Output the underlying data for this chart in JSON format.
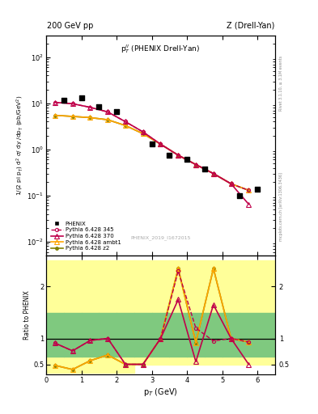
{
  "title_left": "200 GeV pp",
  "title_right": "Z (Drell-Yan)",
  "panel_title": "p$_T^{ll}$ (PHENIX Drell-Yan)",
  "ylabel_main": "1/(2 pi p$_T$) d$^2$ $\\sigma$/ dy /dp$_T$ (pb/GeV$^2$)",
  "ylabel_ratio": "Ratio to PHENIX",
  "xlabel": "p$_T$ (GeV)",
  "watermark": "PHENIX_2019_I1672015",
  "right_label": "mcplots.cern.ch [arXiv:1306.3436]",
  "right_label2": "Rivet 3.1.10, ≥ 3.1M events",
  "phenix_x": [
    0.5,
    1.0,
    1.5,
    2.0,
    3.0,
    3.5,
    4.0,
    4.5,
    5.5,
    6.0
  ],
  "phenix_y": [
    11.5,
    13.0,
    8.5,
    6.5,
    1.3,
    0.75,
    0.62,
    0.38,
    0.1,
    0.14
  ],
  "py345_x": [
    0.25,
    0.75,
    1.25,
    1.75,
    2.25,
    2.75,
    3.25,
    3.75,
    4.25,
    4.75,
    5.25,
    5.75
  ],
  "py345_y": [
    10.5,
    9.8,
    8.2,
    6.5,
    4.0,
    2.4,
    1.3,
    0.75,
    0.47,
    0.3,
    0.18,
    0.13
  ],
  "py370_x": [
    0.25,
    0.75,
    1.25,
    1.75,
    2.25,
    2.75,
    3.25,
    3.75,
    4.25,
    4.75,
    5.25,
    5.75
  ],
  "py370_y": [
    10.5,
    9.8,
    8.2,
    6.5,
    4.0,
    2.4,
    1.3,
    0.75,
    0.47,
    0.3,
    0.18,
    0.065
  ],
  "pyambt1_x": [
    0.25,
    0.75,
    1.25,
    1.75,
    2.25,
    2.75,
    3.25,
    3.75,
    4.25,
    4.75,
    5.25,
    5.75
  ],
  "pyambt1_y": [
    5.5,
    5.2,
    4.9,
    4.4,
    3.3,
    2.2,
    1.3,
    0.75,
    0.47,
    0.3,
    0.18,
    0.13
  ],
  "pyz2_x": [
    0.25,
    0.75,
    1.25,
    1.75,
    2.25,
    2.75,
    3.25,
    3.75,
    4.25,
    4.75,
    5.25,
    5.75
  ],
  "pyz2_y": [
    5.5,
    5.2,
    4.9,
    4.4,
    3.3,
    2.2,
    1.3,
    0.75,
    0.47,
    0.3,
    0.18,
    0.13
  ],
  "ratio345_x": [
    0.25,
    0.75,
    1.25,
    1.75,
    2.25,
    2.75,
    3.25,
    3.75,
    4.25,
    4.75,
    5.25,
    5.75
  ],
  "ratio345_y": [
    0.91,
    0.76,
    0.96,
    1.0,
    0.5,
    0.5,
    1.0,
    2.3,
    1.2,
    0.95,
    1.0,
    0.93
  ],
  "ratio370_x": [
    0.25,
    0.75,
    1.25,
    1.75,
    2.25,
    2.75,
    3.25,
    3.75,
    4.25,
    4.75,
    5.25,
    5.75
  ],
  "ratio370_y": [
    0.91,
    0.76,
    0.96,
    1.0,
    0.5,
    0.5,
    1.0,
    1.75,
    0.55,
    1.65,
    1.0,
    0.5
  ],
  "ratioambt1_x": [
    0.25,
    0.75,
    1.25,
    1.75,
    2.25,
    2.75,
    3.25,
    3.75,
    4.25,
    4.75,
    5.25,
    5.75
  ],
  "ratioambt1_y": [
    0.48,
    0.4,
    0.57,
    0.68,
    0.5,
    0.5,
    1.0,
    2.35,
    0.92,
    2.35,
    1.0,
    0.93
  ],
  "ratioz2_x": [
    0.25,
    0.75,
    1.25,
    1.75,
    2.25,
    2.75,
    3.25,
    3.75,
    4.25,
    4.75,
    5.25,
    5.75
  ],
  "ratioz2_y": [
    0.48,
    0.4,
    0.57,
    0.68,
    0.5,
    0.5,
    1.0,
    2.35,
    0.92,
    2.35,
    1.0,
    0.93
  ],
  "band_yellow_edges": [
    0.0,
    0.5,
    1.0,
    1.5,
    2.0,
    2.5,
    3.0,
    3.5,
    4.0,
    4.5,
    5.0,
    5.5,
    6.5
  ],
  "band_yellow_lo": [
    0.33,
    0.33,
    0.33,
    0.33,
    0.33,
    0.5,
    0.5,
    0.5,
    0.5,
    0.5,
    0.5,
    0.5
  ],
  "band_yellow_hi": [
    2.5,
    2.5,
    2.5,
    2.5,
    2.5,
    2.5,
    2.5,
    2.5,
    2.5,
    2.5,
    2.5,
    2.5
  ],
  "band_green_edges": [
    0.0,
    0.5,
    1.0,
    1.5,
    2.0,
    2.5,
    3.0,
    3.5,
    4.0,
    4.5,
    5.0,
    5.5,
    6.5
  ],
  "band_green_lo": [
    0.65,
    0.65,
    0.65,
    0.65,
    0.65,
    0.65,
    0.65,
    0.65,
    0.65,
    0.65,
    0.65,
    0.65
  ],
  "band_green_hi": [
    1.5,
    1.5,
    1.5,
    1.5,
    1.5,
    1.5,
    1.5,
    1.5,
    1.5,
    1.5,
    1.5,
    1.5
  ],
  "color_345": "#c0004a",
  "color_370": "#c0004a",
  "color_ambt1": "#ffa500",
  "color_z2": "#808000",
  "color_phenix": "#000000",
  "color_green_band": "#7fc97f",
  "color_yellow_band": "#ffff99"
}
